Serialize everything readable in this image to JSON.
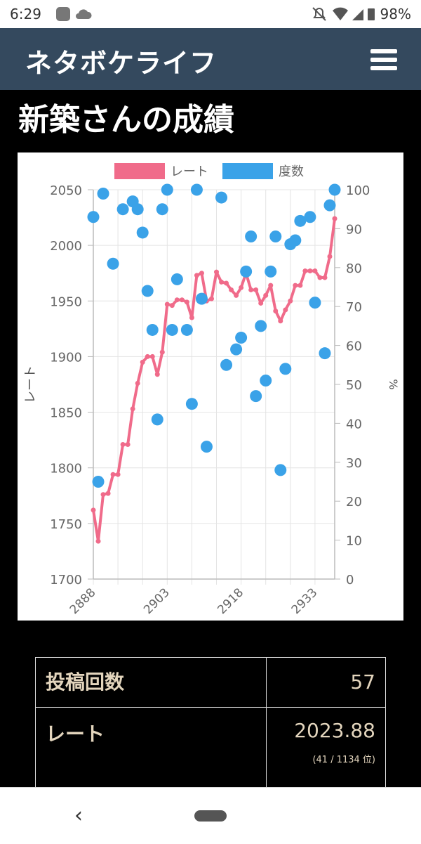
{
  "status_bar": {
    "time": "6:29",
    "battery": "98%"
  },
  "app_bar": {
    "brand": "ネタボケライフ"
  },
  "page": {
    "title": "新築さんの成績"
  },
  "chart_data": {
    "type": "line+scatter",
    "legend": [
      "レート",
      "度数"
    ],
    "colors": {
      "rate": "#f06b8a",
      "freq": "#3aa2e8"
    },
    "y_left_label": "レート",
    "y_right_label": "%",
    "y_left_range": [
      1700,
      2050
    ],
    "y_left_ticks": [
      2050,
      2000,
      1950,
      1900,
      1850,
      1800,
      1750,
      1700
    ],
    "y_right_range": [
      0,
      100
    ],
    "y_right_ticks": [
      100,
      90,
      80,
      70,
      60,
      50,
      40,
      30,
      20,
      10,
      0
    ],
    "x_range": [
      2888,
      2937
    ],
    "x_ticks": [
      2888,
      2903,
      2918,
      2933
    ],
    "rate": [
      [
        2888,
        1762
      ],
      [
        2889,
        1734
      ],
      [
        2890,
        1776
      ],
      [
        2891,
        1777
      ],
      [
        2892,
        1794
      ],
      [
        2893,
        1794
      ],
      [
        2894,
        1821
      ],
      [
        2895,
        1821
      ],
      [
        2896,
        1853
      ],
      [
        2897,
        1876
      ],
      [
        2898,
        1895
      ],
      [
        2899,
        1900
      ],
      [
        2900,
        1900
      ],
      [
        2901,
        1884
      ],
      [
        2902,
        1904
      ],
      [
        2903,
        1947
      ],
      [
        2904,
        1946
      ],
      [
        2905,
        1951
      ],
      [
        2906,
        1951
      ],
      [
        2907,
        1949
      ],
      [
        2908,
        1935
      ],
      [
        2909,
        1973
      ],
      [
        2910,
        1975
      ],
      [
        2911,
        1950
      ],
      [
        2912,
        1952
      ],
      [
        2913,
        1976
      ],
      [
        2914,
        1967
      ],
      [
        2915,
        1966
      ],
      [
        2916,
        1960
      ],
      [
        2917,
        1955
      ],
      [
        2918,
        1962
      ],
      [
        2919,
        1975
      ],
      [
        2920,
        1960
      ],
      [
        2921,
        1960
      ],
      [
        2922,
        1948
      ],
      [
        2923,
        1955
      ],
      [
        2924,
        1964
      ],
      [
        2925,
        1941
      ],
      [
        2926,
        1932
      ],
      [
        2927,
        1942
      ],
      [
        2928,
        1950
      ],
      [
        2929,
        1964
      ],
      [
        2930,
        1964
      ],
      [
        2931,
        1977
      ],
      [
        2932,
        1977
      ],
      [
        2933,
        1977
      ],
      [
        2934,
        1971
      ],
      [
        2935,
        1971
      ],
      [
        2936,
        1990
      ],
      [
        2937,
        2024
      ]
    ],
    "freq": [
      [
        2888,
        93
      ],
      [
        2889,
        25
      ],
      [
        2890,
        99
      ],
      [
        2892,
        81
      ],
      [
        2894,
        95
      ],
      [
        2896,
        97
      ],
      [
        2897,
        95
      ],
      [
        2898,
        89
      ],
      [
        2899,
        74
      ],
      [
        2900,
        64
      ],
      [
        2901,
        41
      ],
      [
        2902,
        95
      ],
      [
        2903,
        100
      ],
      [
        2904,
        64
      ],
      [
        2905,
        77
      ],
      [
        2907,
        64
      ],
      [
        2908,
        45
      ],
      [
        2909,
        100
      ],
      [
        2910,
        72
      ],
      [
        2911,
        34
      ],
      [
        2914,
        98
      ],
      [
        2915,
        55
      ],
      [
        2917,
        59
      ],
      [
        2918,
        62
      ],
      [
        2919,
        79
      ],
      [
        2920,
        88
      ],
      [
        2921,
        47
      ],
      [
        2922,
        65
      ],
      [
        2923,
        51
      ],
      [
        2924,
        79
      ],
      [
        2925,
        88
      ],
      [
        2926,
        28
      ],
      [
        2927,
        54
      ],
      [
        2928,
        86
      ],
      [
        2929,
        87
      ],
      [
        2930,
        92
      ],
      [
        2932,
        93
      ],
      [
        2933,
        71
      ],
      [
        2935,
        58
      ],
      [
        2936,
        96
      ],
      [
        2937,
        100
      ]
    ]
  },
  "stats": {
    "posts_label": "投稿回数",
    "posts_value": "57",
    "rate_label": "レート",
    "rate_value": "2023.88",
    "rate_rank": "(41 / 1134 位)"
  }
}
